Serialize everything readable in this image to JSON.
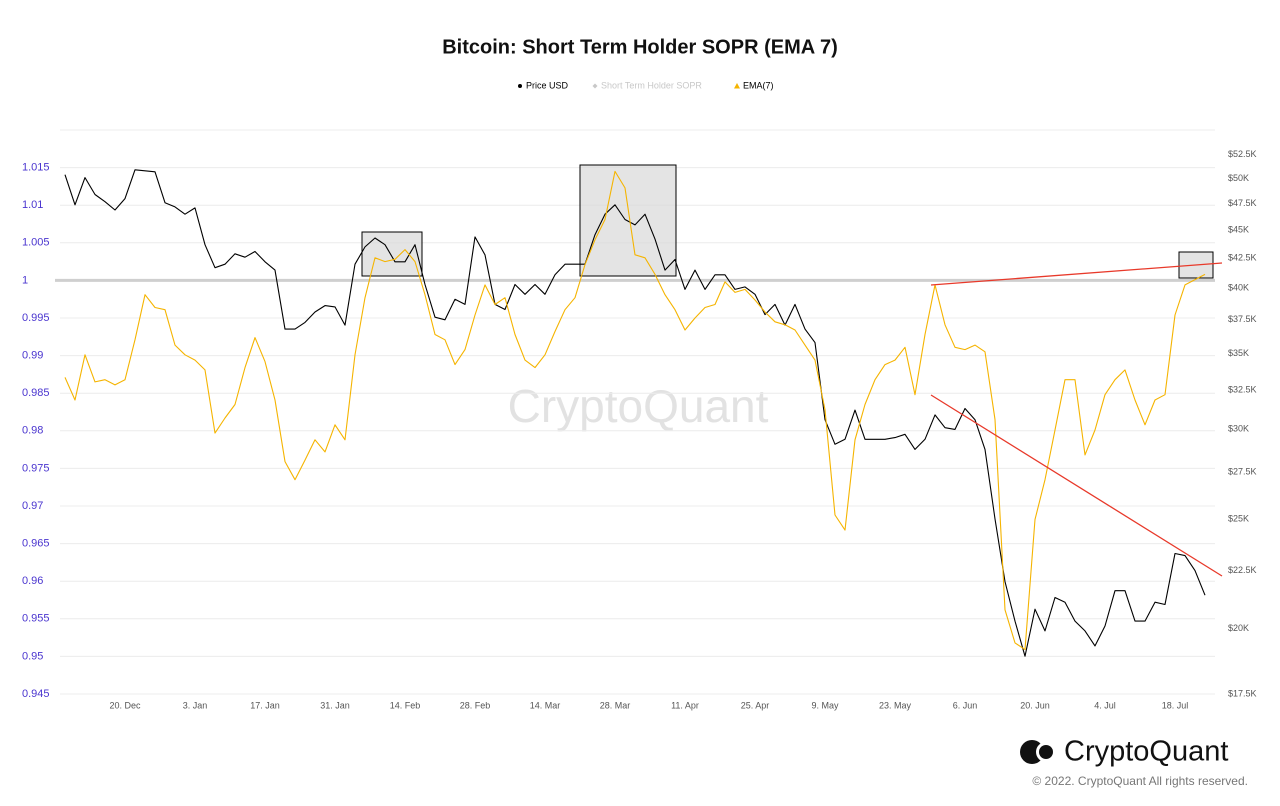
{
  "chart_data": {
    "type": "line",
    "title": "Bitcoin: Short Term Holder SOPR (EMA 7)",
    "watermark": "CryptoQuant",
    "legend": "top",
    "categories": [
      null,
      null,
      null,
      null,
      null,
      null,
      "20. Dec",
      null,
      null,
      null,
      null,
      null,
      null,
      "3. Jan",
      null,
      null,
      null,
      null,
      null,
      null,
      "17. Jan",
      null,
      null,
      null,
      null,
      null,
      null,
      "31. Jan",
      null,
      null,
      null,
      null,
      null,
      null,
      "14. Feb",
      null,
      null,
      null,
      null,
      null,
      null,
      "28. Feb",
      null,
      null,
      null,
      null,
      null,
      null,
      "14. Mar",
      null,
      null,
      null,
      null,
      null,
      null,
      "28. Mar",
      null,
      null,
      null,
      null,
      null,
      null,
      "11. Apr",
      null,
      null,
      null,
      null,
      null,
      null,
      "25. Apr",
      null,
      null,
      null,
      null,
      null,
      null,
      "9. May",
      null,
      null,
      null,
      null,
      null,
      null,
      "23. May",
      null,
      null,
      null,
      null,
      null,
      null,
      "6. Jun",
      null,
      null,
      null,
      null,
      null,
      null,
      "20. Jun",
      null,
      null,
      null,
      null,
      null,
      null,
      "4. Jul",
      null,
      null,
      null,
      null,
      null,
      null,
      "18. Jul",
      null,
      null,
      null
    ],
    "series": [
      {
        "name": "Price USD",
        "color": "#000000",
        "marker": "circle",
        "axis": "y2",
        "visible": true,
        "values": [
          50400,
          47400,
          50100,
          48400,
          47700,
          46900,
          48000,
          50900,
          50800,
          50700,
          47600,
          47200,
          46500,
          47100,
          43700,
          41700,
          42000,
          42900,
          42600,
          43100,
          42200,
          41500,
          36800,
          36800,
          37300,
          38100,
          38600,
          38500,
          37100,
          42000,
          43500,
          44300,
          43700,
          42200,
          42200,
          43700,
          40300,
          37700,
          37500,
          39100,
          38700,
          44400,
          42800,
          38700,
          38300,
          40300,
          39500,
          40300,
          39500,
          41100,
          42000,
          42000,
          42000,
          44600,
          46500,
          47400,
          46000,
          45500,
          46500,
          44200,
          41500,
          42400,
          39900,
          41500,
          39900,
          41100,
          41100,
          39900,
          40100,
          39500,
          37900,
          38700,
          37100,
          38700,
          36800,
          35800,
          30600,
          29100,
          29400,
          31200,
          29400,
          29400,
          29400,
          29500,
          29700,
          28800,
          29400,
          30900,
          30100,
          30000,
          31300,
          30600,
          28800,
          25000,
          22000,
          20300,
          18900,
          20800,
          19900,
          21300,
          21100,
          20300,
          19900,
          19300,
          20100,
          21600,
          21600,
          20300,
          20300,
          21100,
          21000,
          23300,
          23200,
          22500,
          21400
        ]
      },
      {
        "name": "Short Term Holder SOPR",
        "color": "#c8c8c8",
        "marker": "diamond",
        "visible": false,
        "values": [
          null,
          null,
          null,
          null,
          null,
          null,
          null,
          null,
          null,
          null,
          null,
          null,
          null,
          null,
          null,
          null,
          null,
          null,
          null,
          null,
          null,
          null,
          null,
          null,
          null,
          null,
          null,
          null,
          null,
          null,
          null,
          null,
          null,
          null,
          null,
          null,
          null,
          null,
          null,
          null,
          null,
          null,
          null,
          null,
          null,
          null,
          null,
          null,
          null,
          null,
          null,
          null,
          null,
          null,
          null,
          null,
          null,
          null,
          null,
          null,
          null,
          null,
          null,
          null,
          null,
          null,
          null,
          null,
          null,
          null,
          null,
          null,
          null,
          null,
          null,
          null,
          null,
          null,
          null,
          null,
          null,
          null,
          null,
          null,
          null,
          null,
          null,
          null,
          null,
          null,
          null,
          null,
          null,
          null,
          null,
          null,
          null,
          null,
          null,
          null,
          null,
          null,
          null,
          null,
          null,
          null,
          null,
          null,
          null,
          null,
          null,
          null,
          null,
          null,
          null
        ]
      },
      {
        "name": "EMA(7)",
        "color": "#f5b400",
        "marker": "triangle",
        "visible": true,
        "values": [
          0.9871,
          0.9841,
          0.9901,
          0.9865,
          0.9868,
          0.9861,
          0.9868,
          0.9921,
          0.9981,
          0.9964,
          0.9961,
          0.9914,
          0.9901,
          0.9894,
          0.9881,
          0.9797,
          0.9817,
          0.9835,
          0.9884,
          0.9924,
          0.9892,
          0.9841,
          0.9759,
          0.9735,
          0.9761,
          0.9788,
          0.9772,
          0.9808,
          0.9788,
          0.9901,
          0.9977,
          1.003,
          1.0025,
          1.0028,
          1.0041,
          1.0025,
          0.9981,
          0.9928,
          0.9921,
          0.9888,
          0.9908,
          0.9954,
          0.9994,
          0.9968,
          0.9977,
          0.9928,
          0.9894,
          0.9884,
          0.9901,
          0.9932,
          0.9961,
          0.9977,
          1.0021,
          1.0054,
          1.0081,
          1.0145,
          1.0123,
          1.0034,
          1.003,
          1.0008,
          0.9981,
          0.9961,
          0.9934,
          0.995,
          0.9964,
          0.9968,
          0.9998,
          0.9984,
          0.9988,
          0.9974,
          0.9958,
          0.9945,
          0.9941,
          0.9934,
          0.9914,
          0.9894,
          0.9828,
          0.9688,
          0.9668,
          0.9788,
          0.9835,
          0.9868,
          0.9888,
          0.9894,
          0.9911,
          0.9848,
          0.9928,
          0.9994,
          0.9941,
          0.9911,
          0.9908,
          0.9914,
          0.9905,
          0.9815,
          0.9562,
          0.9518,
          0.9509,
          0.9682,
          0.9735,
          0.9801,
          0.9868,
          0.9868,
          0.9768,
          0.9801,
          0.9848,
          0.9868,
          0.9881,
          0.9841,
          0.9808,
          0.9841,
          0.9848,
          0.9954,
          0.9994,
          1.0001,
          1.0008
        ]
      }
    ],
    "ylim": [
      0.945,
      1.02
    ],
    "yticks": [
      0.945,
      0.95,
      0.955,
      0.96,
      0.965,
      0.97,
      0.975,
      0.98,
      0.985,
      0.99,
      0.995,
      1,
      1.005,
      1.01,
      1.015
    ],
    "y2lim": [
      17500,
      55200
    ],
    "y2log": true,
    "y2ticks": [
      {
        "value": 17500,
        "label": "$17.5K"
      },
      {
        "value": 20000,
        "label": "$20K"
      },
      {
        "value": 22500,
        "label": "$22.5K"
      },
      {
        "value": 25000,
        "label": "$25K"
      },
      {
        "value": 27500,
        "label": "$27.5K"
      },
      {
        "value": 30000,
        "label": "$30K"
      },
      {
        "value": 32500,
        "label": "$32.5K"
      },
      {
        "value": 35000,
        "label": "$35K"
      },
      {
        "value": 37500,
        "label": "$37.5K"
      },
      {
        "value": 40000,
        "label": "$40K"
      },
      {
        "value": 42500,
        "label": "$42.5K"
      },
      {
        "value": 45000,
        "label": "$45K"
      },
      {
        "value": 47500,
        "label": "$47.5K"
      },
      {
        "value": 50000,
        "label": "$50K"
      },
      {
        "value": 52500,
        "label": "$52.5K"
      }
    ],
    "reference_line": 1,
    "grid": true
  },
  "footer": {
    "brand": "CryptoQuant",
    "copyright": "© 2022. CryptoQuant All rights reserved."
  }
}
